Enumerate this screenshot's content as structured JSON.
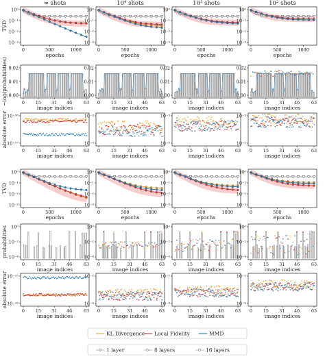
{
  "column_titles": [
    "∞ shots",
    "10⁴ shots",
    "10³ shots",
    "10² shots"
  ],
  "colors": {
    "kl": "#f0a830",
    "lf": "#d43a3a",
    "mmd": "#2f7fb8",
    "gray": "#8a8a8a",
    "band": "#f3b8b8",
    "bar": "#777777"
  },
  "legend": {
    "methods": [
      "KL Divergence",
      "Local Fidelity",
      "MMD"
    ],
    "layers": [
      "1 layer",
      "8 layers",
      "16 layers"
    ]
  },
  "rows": [
    {
      "kind": "tvd",
      "ylabel": "TVD",
      "xlabel": "epochs",
      "yticks": [
        "10⁰",
        "10⁻¹",
        "10⁻²",
        "10⁻³"
      ],
      "xticks": [
        "0",
        "500",
        "1000"
      ]
    },
    {
      "kind": "prob",
      "ylabel": "−log(probabilities)",
      "xlabel": "image indices",
      "yticks": [
        "0.02",
        "0.01",
        "0.00"
      ],
      "xticks": [
        "0",
        "15",
        "31",
        "46",
        "63"
      ]
    },
    {
      "kind": "err",
      "ylabel": "absolute error",
      "xlabel": "image indices",
      "yticks_by_col": [
        [
          "10⁻¹⁶",
          "10⁻¹⁷"
        ],
        [
          "10⁻³",
          "10⁻⁵"
        ],
        [
          "10⁻³",
          "10⁻⁵"
        ],
        [
          "10⁻³",
          "10⁻⁵"
        ]
      ],
      "xticks": [
        "0",
        "15",
        "31",
        "46",
        "63"
      ]
    },
    {
      "kind": "tvd",
      "ylabel": "TVD",
      "xlabel": "epochs",
      "yticks": [
        "10⁰",
        "10⁻¹",
        "10⁻²",
        "10⁻³"
      ],
      "xticks": [
        "0",
        "500",
        "1000"
      ]
    },
    {
      "kind": "probl",
      "ylabel": "probabilities",
      "xlabel": "image indices",
      "yticks": [
        "10⁰",
        "10⁻²",
        "10⁻⁴"
      ],
      "xticks": [
        "0",
        "15",
        "31",
        "46",
        "63"
      ]
    },
    {
      "kind": "err",
      "ylabel": "absolute error",
      "xlabel": "image indices",
      "yticks_by_col": [
        [
          "10⁻¹⁵",
          "10⁻¹⁶"
        ],
        [
          "10⁻²",
          "10⁻⁴"
        ],
        [
          "10⁻²",
          "10⁻⁴"
        ],
        [
          "10⁻²",
          "10⁻⁴"
        ]
      ],
      "xticks": [
        "0",
        "15",
        "31",
        "46",
        "63"
      ]
    }
  ],
  "chart_data": [
    {
      "type": "line",
      "panel": "TVD vs epochs, dataset 1",
      "xlabel": "epochs",
      "ylabel": "TVD",
      "yscale": "log",
      "ylim": [
        0.001,
        1
      ],
      "xlim": [
        0,
        1200
      ],
      "by_shots": [
        {
          "shots": "∞",
          "final_tvd": {
            "KL Divergence": 0.05,
            "Local Fidelity": 0.05,
            "MMD": 0.001
          },
          "one_layer_tvd": 0.2
        },
        {
          "shots": "10⁴",
          "final_tvd": {
            "KL Divergence": 0.03,
            "Local Fidelity": 0.04,
            "MMD": 0.02
          },
          "one_layer_tvd": 0.2
        },
        {
          "shots": "10³",
          "final_tvd": {
            "KL Divergence": 0.05,
            "Local Fidelity": 0.06,
            "MMD": 0.05
          },
          "one_layer_tvd": 0.2
        },
        {
          "shots": "10²",
          "final_tvd": {
            "KL Divergence": 0.1,
            "Local Fidelity": 0.12,
            "MMD": 0.1
          },
          "one_layer_tvd": 0.2
        }
      ]
    },
    {
      "type": "bar",
      "panel": "probabilities per image index, dataset 1",
      "xlabel": "image indices",
      "ylabel": "−log(probabilities)",
      "ylim": [
        0,
        0.02
      ],
      "categories_range": [
        0,
        63
      ],
      "typical_value": 0.016,
      "low_indices": [
        0,
        1,
        2,
        3,
        4,
        5,
        21,
        22,
        23,
        33,
        34,
        46,
        47,
        60,
        61,
        62,
        63
      ]
    },
    {
      "type": "scatter",
      "panel": "absolute error per image index, dataset 1",
      "xlabel": "image indices",
      "ylabel": "absolute error",
      "yscale": "log",
      "by_shots": [
        {
          "shots": "∞",
          "ylim": [
            1e-18,
            1e-15
          ],
          "levels": {
            "KL Divergence": 3e-16,
            "Local Fidelity": 2e-16,
            "MMD": 1e-17
          }
        },
        {
          "shots": "10⁴",
          "ylim": [
            1e-06,
            0.01
          ],
          "levels": {
            "KL Divergence": 0.0003,
            "Local Fidelity": 0.0001,
            "MMD": 5e-05
          }
        },
        {
          "shots": "10³",
          "ylim": [
            1e-06,
            0.01
          ],
          "levels": {
            "KL Divergence": 0.001,
            "Local Fidelity": 0.0003,
            "MMD": 0.0003
          }
        },
        {
          "shots": "10²",
          "ylim": [
            1e-06,
            0.01
          ],
          "levels": {
            "KL Divergence": 0.003,
            "Local Fidelity": 0.001,
            "MMD": 0.001
          }
        }
      ]
    },
    {
      "type": "line",
      "panel": "TVD vs epochs, dataset 2",
      "xlabel": "epochs",
      "ylabel": "TVD",
      "yscale": "log",
      "ylim": [
        0.001,
        1
      ],
      "xlim": [
        0,
        1200
      ],
      "by_shots": [
        {
          "shots": "∞",
          "final_tvd": {
            "KL Divergence": 0.002,
            "Local Fidelity": 0.003,
            "MMD": 0.02
          },
          "one_layer_tvd": 0.3
        },
        {
          "shots": "10⁴",
          "final_tvd": {
            "KL Divergence": 0.03,
            "Local Fidelity": 0.01,
            "MMD": 0.02
          },
          "one_layer_tvd": 0.3
        },
        {
          "shots": "10³",
          "final_tvd": {
            "KL Divergence": 0.05,
            "Local Fidelity": 0.02,
            "MMD": 0.04
          },
          "one_layer_tvd": 0.3
        },
        {
          "shots": "10²",
          "final_tvd": {
            "KL Divergence": 0.1,
            "Local Fidelity": 0.05,
            "MMD": 0.08
          },
          "one_layer_tvd": 0.3
        }
      ]
    },
    {
      "type": "bar",
      "panel": "probabilities per image index, dataset 2",
      "xlabel": "image indices",
      "ylabel": "probabilities",
      "yscale": "log",
      "ylim": [
        1e-05,
        1
      ],
      "categories_range": [
        0,
        63
      ],
      "tall_indices": [
        5,
        15,
        27,
        46,
        52,
        59,
        61,
        63
      ],
      "tall_value": 0.1
    },
    {
      "type": "scatter",
      "panel": "absolute error per image index, dataset 2",
      "xlabel": "image indices",
      "ylabel": "absolute error",
      "yscale": "log",
      "by_shots": [
        {
          "shots": "∞",
          "ylim": [
            1e-17,
            1e-14
          ],
          "levels": {
            "KL Divergence": 1e-16,
            "Local Fidelity": 1e-16,
            "MMD": 5e-15
          }
        },
        {
          "shots": "10⁴",
          "ylim": [
            1e-05,
            1
          ],
          "levels": {
            "KL Divergence": 0.001,
            "Local Fidelity": 0.0003,
            "MMD": 0.0003
          }
        },
        {
          "shots": "10³",
          "ylim": [
            1e-05,
            1
          ],
          "levels": {
            "KL Divergence": 0.003,
            "Local Fidelity": 0.001,
            "MMD": 0.001
          }
        },
        {
          "shots": "10²",
          "ylim": [
            1e-05,
            1
          ],
          "levels": {
            "KL Divergence": 0.03,
            "Local Fidelity": 0.01,
            "MMD": 0.01
          }
        }
      ]
    }
  ]
}
